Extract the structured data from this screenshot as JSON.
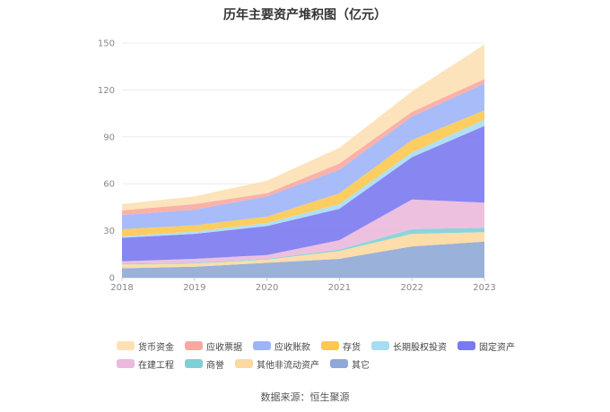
{
  "chart_data": {
    "type": "area",
    "stacked": true,
    "title": "历年主要资产堆积图（亿元）",
    "categories": [
      "2018",
      "2019",
      "2020",
      "2021",
      "2022",
      "2023"
    ],
    "ylim": [
      0,
      150
    ],
    "yticks": [
      0,
      30,
      60,
      90,
      120,
      150
    ],
    "grid": true,
    "legend_position": "bottom",
    "series": [
      {
        "name": "其它",
        "color": "#8fa8d6",
        "values": [
          6,
          7,
          9.5,
          12,
          20,
          23
        ]
      },
      {
        "name": "其他非流动资产",
        "color": "#fdd9a0",
        "values": [
          2.5,
          2,
          2,
          5,
          8,
          6
        ]
      },
      {
        "name": "商誉",
        "color": "#7fd0d6",
        "values": [
          0.5,
          0.5,
          0.5,
          1,
          3,
          3
        ]
      },
      {
        "name": "在建工程",
        "color": "#ebb9dc",
        "values": [
          1.5,
          2.5,
          2.5,
          6,
          19,
          16
        ]
      },
      {
        "name": "固定资产",
        "color": "#7b79f0",
        "values": [
          15,
          16,
          18.5,
          20,
          27,
          49
        ]
      },
      {
        "name": "长期股权投资",
        "color": "#a8dcf5",
        "values": [
          1,
          1.5,
          2,
          3,
          3,
          4
        ]
      },
      {
        "name": "存货",
        "color": "#fcc850",
        "values": [
          4.5,
          4,
          4,
          7,
          8,
          6
        ]
      },
      {
        "name": "应收账款",
        "color": "#9db5f8",
        "values": [
          9,
          10,
          13,
          15,
          15,
          17
        ]
      },
      {
        "name": "应收票据",
        "color": "#f9a8a0",
        "values": [
          3,
          3.5,
          2,
          4,
          3,
          3
        ]
      },
      {
        "name": "货币资金",
        "color": "#fde0b4",
        "values": [
          4,
          5,
          8,
          10,
          13,
          22
        ]
      }
    ],
    "source": "数据来源：恒生聚源"
  }
}
